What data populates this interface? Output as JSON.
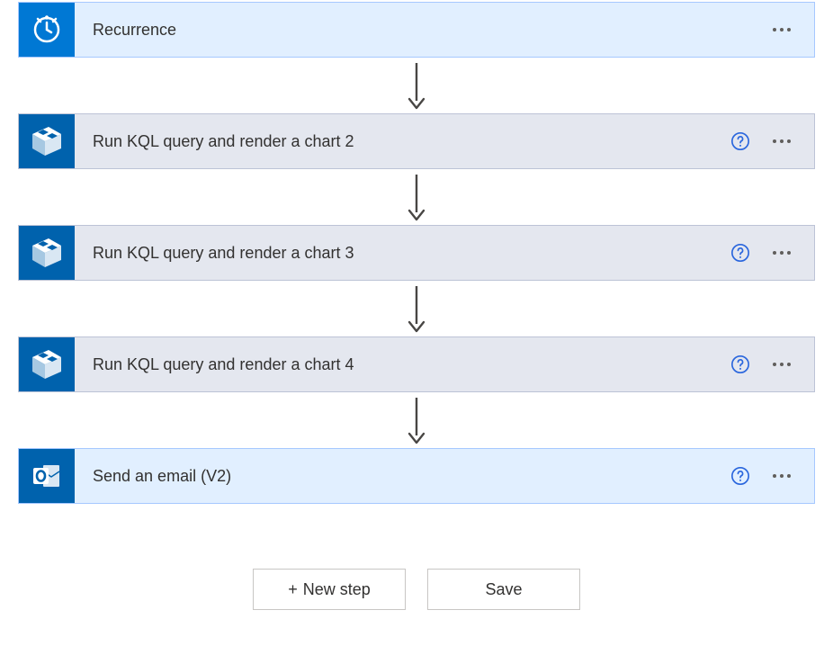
{
  "colors": {
    "azure_blue": "#0078d4",
    "blue_icon_bg": "#0062ad",
    "trigger_bg": "#e1efff",
    "trigger_border": "#a6c8ff",
    "action_bg": "#e4e7ef",
    "action_border": "#bcc3d6",
    "help_ring": "#2a66dd",
    "ellipsis": "#605e5c",
    "arrow": "#484644"
  },
  "steps": [
    {
      "id": "recurrence",
      "label": "Recurrence",
      "icon": "clock",
      "variant": "trigger",
      "help": false
    },
    {
      "id": "kql-2",
      "label": "Run KQL query and render a chart 2",
      "icon": "monitor",
      "variant": "action",
      "help": true
    },
    {
      "id": "kql-3",
      "label": "Run KQL query and render a chart 3",
      "icon": "monitor",
      "variant": "action",
      "help": true
    },
    {
      "id": "kql-4",
      "label": "Run KQL query and render a chart 4",
      "icon": "monitor",
      "variant": "action",
      "help": true
    },
    {
      "id": "send-email",
      "label": "Send an email (V2)",
      "icon": "outlook",
      "variant": "trigger",
      "help": true
    }
  ],
  "footer": {
    "new_step_label": "New step",
    "save_label": "Save"
  }
}
